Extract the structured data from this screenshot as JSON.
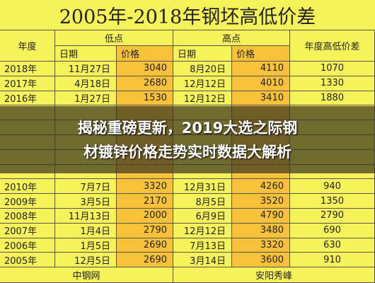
{
  "header": {
    "title": "2005年-2018年钢坯高低价差"
  },
  "table": {
    "columns": {
      "year": "年度",
      "low": "低点",
      "high": "高点",
      "diff": "年度高低价差",
      "date": "日期",
      "price": "价格"
    },
    "rows_top": [
      [
        "2018年",
        "11月27日",
        3040,
        "8月20日",
        4110,
        1070
      ],
      [
        "2017年",
        "4月18日",
        2680,
        "12月12日",
        4010,
        1330
      ],
      [
        "2016年",
        "1月27日",
        1530,
        "12月12日",
        3410,
        1880
      ]
    ],
    "rows_bottom": [
      [
        "2010年",
        "7月7日",
        3320,
        "12月31日",
        4260,
        940
      ],
      [
        "2009年",
        "3月5日",
        2170,
        "8月5日",
        3520,
        1350
      ],
      [
        "2008年",
        "11月13日",
        2000,
        "6月9日",
        4790,
        2790
      ],
      [
        "2007年",
        "1月4日",
        2790,
        "12月12日",
        3480,
        690
      ],
      [
        "2006年",
        "1月5日",
        2690,
        "7月13日",
        3320,
        630
      ],
      [
        "2005年",
        "12月5日",
        2690,
        "3月14日",
        3600,
        910
      ]
    ],
    "footer": [
      "中钢网",
      "安阳秀峰"
    ]
  },
  "banner": {
    "lines": [
      "揭秘重磅更新，2019大选之际钢",
      "材镀锌价格走势实时数据大解析"
    ]
  }
}
